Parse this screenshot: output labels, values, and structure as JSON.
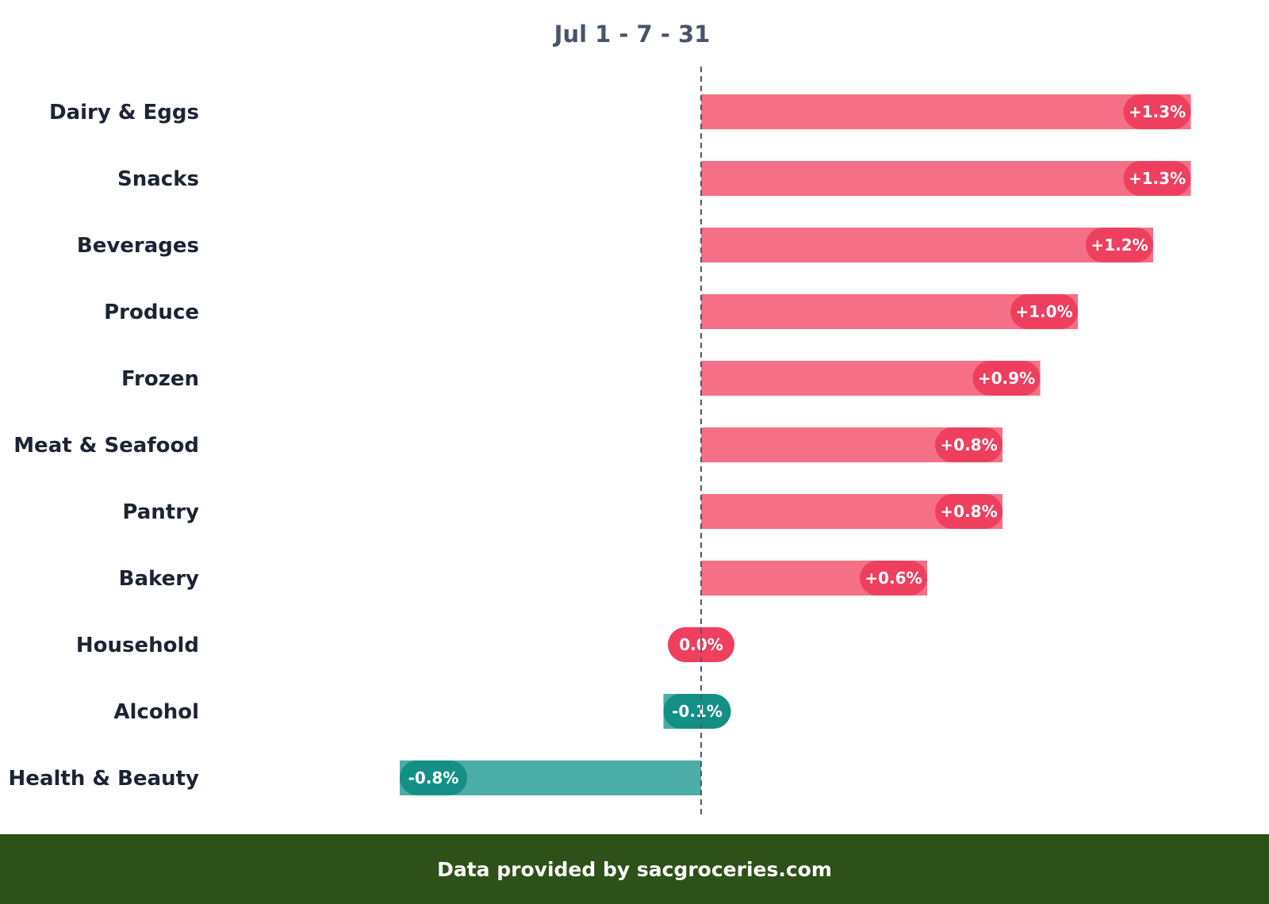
{
  "colors": {
    "positive_bar": "#f56f86",
    "positive_pill": "#ee3f5e",
    "negative_bar": "#4aada6",
    "negative_pill": "#138f86",
    "text": "#1c2433",
    "title": "#485468",
    "axis_line": "#4f5a6e",
    "footer_bg": "#2e5019"
  },
  "footer": {
    "text": "Data provided by sacgroceries.com"
  },
  "chart_data": {
    "type": "bar",
    "orientation": "horizontal",
    "title": "Jul 1 - 7 - 31",
    "xlabel": "",
    "ylabel": "",
    "xlim": [
      -0.9,
      1.4
    ],
    "grid": false,
    "legend": "none",
    "categories": [
      "Dairy & Eggs",
      "Snacks",
      "Beverages",
      "Produce",
      "Frozen",
      "Meat & Seafood",
      "Pantry",
      "Bakery",
      "Household",
      "Alcohol",
      "Health & Beauty"
    ],
    "values": [
      1.3,
      1.3,
      1.2,
      1.0,
      0.9,
      0.8,
      0.8,
      0.6,
      0.0,
      -0.1,
      -0.8
    ],
    "data_labels": [
      "+1.3%",
      "+1.3%",
      "+1.2%",
      "+1.0%",
      "+0.9%",
      "+0.8%",
      "+0.8%",
      "+0.6%",
      "0.0%",
      "-0.1%",
      "-0.8%"
    ]
  }
}
